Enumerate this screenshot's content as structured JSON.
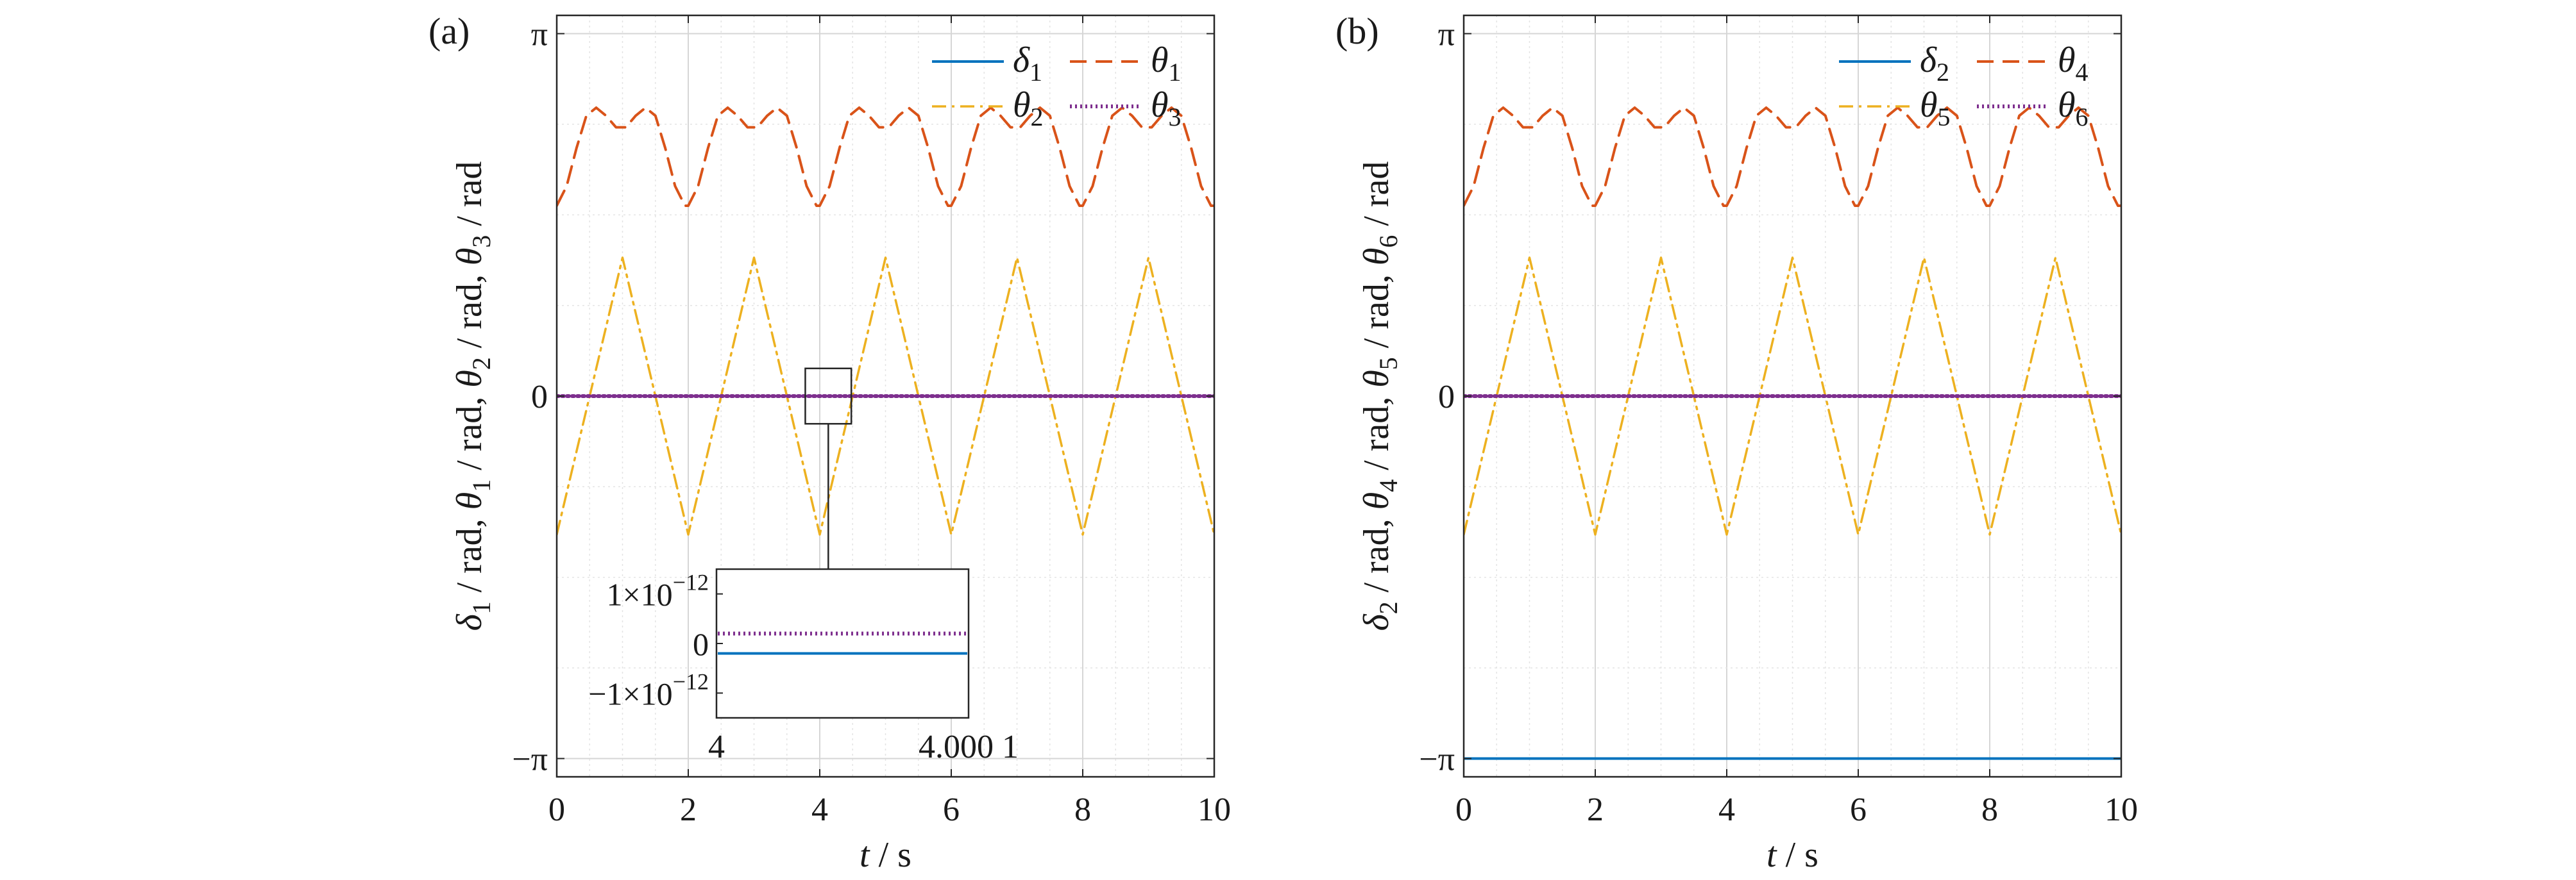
{
  "chart_data": [
    {
      "panel_label": "(a)",
      "type": "line",
      "xlabel": {
        "var": "t",
        "unit": " / s"
      },
      "ylabel_terms": [
        {
          "var": "δ",
          "sub": "1",
          "unit": " / rad,"
        },
        {
          "var": "θ",
          "sub": "1",
          "unit": " / rad,"
        },
        {
          "var": "θ",
          "sub": "2",
          "unit": " / rad,"
        },
        {
          "var": "θ",
          "sub": "3",
          "unit": " / rad"
        }
      ],
      "xlim": [
        0,
        10
      ],
      "ylim": [
        -3.3,
        3.3
      ],
      "xticks": [
        0,
        2,
        4,
        6,
        8,
        10
      ],
      "xtick_labels": [
        "0",
        "2",
        "4",
        "6",
        "8",
        "10"
      ],
      "yticks": [
        -3.1416,
        0,
        3.1416
      ],
      "ytick_labels": [
        "−π",
        "0",
        "π"
      ],
      "grid": true,
      "legend_position": "top-right",
      "series": [
        {
          "name": "δ",
          "sub": "1",
          "style": "solid",
          "color": "#0072BD",
          "x": [
            0,
            10
          ],
          "y": [
            0,
            0
          ]
        },
        {
          "name": "θ",
          "sub": "2",
          "style": "dashdot",
          "color": "#EDB120",
          "x": [
            0,
            0.5,
            1,
            1.5,
            2,
            2.5,
            3,
            3.5,
            4,
            4.5,
            5,
            5.5,
            6,
            6.5,
            7,
            7.5,
            8,
            8.5,
            9,
            9.5,
            10
          ],
          "y": [
            -1.2,
            0,
            1.2,
            0,
            -1.2,
            0,
            1.2,
            0,
            -1.2,
            0,
            1.2,
            0,
            -1.2,
            0,
            1.2,
            0,
            -1.2,
            0,
            1.2,
            0,
            -1.2
          ]
        },
        {
          "name": "θ",
          "sub": "1",
          "style": "dashed",
          "color": "#D95319",
          "x": [
            0,
            0.15,
            0.3,
            0.45,
            0.6,
            0.75,
            0.9,
            1.05,
            1.2,
            1.35,
            1.5,
            1.65,
            1.8,
            1.95,
            2,
            2.15,
            2.3,
            2.45,
            2.6,
            2.75,
            2.9,
            3.05,
            3.2,
            3.35,
            3.5,
            3.65,
            3.8,
            3.95,
            4,
            4.15,
            4.3,
            4.45,
            4.6,
            4.75,
            4.9,
            5.05,
            5.2,
            5.35,
            5.5,
            5.65,
            5.8,
            5.95,
            6,
            6.15,
            6.3,
            6.45,
            6.6,
            6.75,
            6.9,
            7.05,
            7.2,
            7.35,
            7.5,
            7.65,
            7.8,
            7.95,
            8,
            8.15,
            8.3,
            8.45,
            8.6,
            8.75,
            8.9,
            9.05,
            9.2,
            9.35,
            9.5,
            9.65,
            9.8,
            9.95,
            10
          ],
          "y": [
            1.65,
            1.82,
            2.15,
            2.43,
            2.5,
            2.43,
            2.33,
            2.33,
            2.43,
            2.5,
            2.43,
            2.15,
            1.82,
            1.65,
            1.65,
            1.82,
            2.15,
            2.43,
            2.5,
            2.43,
            2.33,
            2.33,
            2.43,
            2.5,
            2.43,
            2.15,
            1.82,
            1.65,
            1.65,
            1.82,
            2.15,
            2.43,
            2.5,
            2.43,
            2.33,
            2.33,
            2.43,
            2.5,
            2.43,
            2.15,
            1.82,
            1.65,
            1.65,
            1.82,
            2.15,
            2.43,
            2.5,
            2.43,
            2.33,
            2.33,
            2.43,
            2.5,
            2.43,
            2.15,
            1.82,
            1.65,
            1.65,
            1.82,
            2.15,
            2.43,
            2.5,
            2.43,
            2.33,
            2.33,
            2.43,
            2.5,
            2.43,
            2.15,
            1.82,
            1.65,
            1.65
          ]
        },
        {
          "name": "θ",
          "sub": "3",
          "style": "dotted",
          "color": "#7E2F8E",
          "x": [
            0,
            10
          ],
          "y": [
            0,
            0
          ]
        }
      ],
      "zoom_box": {
        "x": [
          3.78,
          4.48
        ],
        "y": [
          -0.24,
          0.24
        ]
      },
      "inset": {
        "xlim": [
          4,
          4.0001
        ],
        "ylim": [
          -1.5e-12,
          1.5e-12
        ],
        "xtick_labels": [
          "4",
          "4.000 1"
        ],
        "ytick_labels": [
          {
            "base": "1×10",
            "exp": "−12"
          },
          {
            "base": "0",
            "exp": ""
          },
          {
            "base": "−1×10",
            "exp": "−12"
          }
        ],
        "series": [
          {
            "name": "θ",
            "sub": "3",
            "style": "dotted",
            "color": "#7E2F8E",
            "y": 2e-13
          },
          {
            "name": "δ",
            "sub": "1",
            "style": "solid",
            "color": "#0072BD",
            "y": -2e-13
          }
        ]
      }
    },
    {
      "panel_label": "(b)",
      "type": "line",
      "xlabel": {
        "var": "t",
        "unit": " / s"
      },
      "ylabel_terms": [
        {
          "var": "δ",
          "sub": "2",
          "unit": " / rad,"
        },
        {
          "var": "θ",
          "sub": "4",
          "unit": " / rad,"
        },
        {
          "var": "θ",
          "sub": "5",
          "unit": " / rad,"
        },
        {
          "var": "θ",
          "sub": "6",
          "unit": " / rad"
        }
      ],
      "xlim": [
        0,
        10
      ],
      "ylim": [
        -3.3,
        3.3
      ],
      "xticks": [
        0,
        2,
        4,
        6,
        8,
        10
      ],
      "xtick_labels": [
        "0",
        "2",
        "4",
        "6",
        "8",
        "10"
      ],
      "yticks": [
        -3.1416,
        0,
        3.1416
      ],
      "ytick_labels": [
        "−π",
        "0",
        "π"
      ],
      "grid": true,
      "legend_position": "top-right",
      "series": [
        {
          "name": "δ",
          "sub": "2",
          "style": "solid",
          "color": "#0072BD",
          "x": [
            0,
            10
          ],
          "y": [
            -3.1416,
            -3.1416
          ]
        },
        {
          "name": "θ",
          "sub": "5",
          "style": "dashdot",
          "color": "#EDB120",
          "x": [
            0,
            0.5,
            1,
            1.5,
            2,
            2.5,
            3,
            3.5,
            4,
            4.5,
            5,
            5.5,
            6,
            6.5,
            7,
            7.5,
            8,
            8.5,
            9,
            9.5,
            10
          ],
          "y": [
            -1.2,
            0,
            1.2,
            0,
            -1.2,
            0,
            1.2,
            0,
            -1.2,
            0,
            1.2,
            0,
            -1.2,
            0,
            1.2,
            0,
            -1.2,
            0,
            1.2,
            0,
            -1.2
          ]
        },
        {
          "name": "θ",
          "sub": "4",
          "style": "dashed",
          "color": "#D95319",
          "x": [
            0,
            0.15,
            0.3,
            0.45,
            0.6,
            0.75,
            0.9,
            1.05,
            1.2,
            1.35,
            1.5,
            1.65,
            1.8,
            1.95,
            2,
            2.15,
            2.3,
            2.45,
            2.6,
            2.75,
            2.9,
            3.05,
            3.2,
            3.35,
            3.5,
            3.65,
            3.8,
            3.95,
            4,
            4.15,
            4.3,
            4.45,
            4.6,
            4.75,
            4.9,
            5.05,
            5.2,
            5.35,
            5.5,
            5.65,
            5.8,
            5.95,
            6,
            6.15,
            6.3,
            6.45,
            6.6,
            6.75,
            6.9,
            7.05,
            7.2,
            7.35,
            7.5,
            7.65,
            7.8,
            7.95,
            8,
            8.15,
            8.3,
            8.45,
            8.6,
            8.75,
            8.9,
            9.05,
            9.2,
            9.35,
            9.5,
            9.65,
            9.8,
            9.95,
            10
          ],
          "y": [
            1.65,
            1.82,
            2.15,
            2.43,
            2.5,
            2.43,
            2.33,
            2.33,
            2.43,
            2.5,
            2.43,
            2.15,
            1.82,
            1.65,
            1.65,
            1.82,
            2.15,
            2.43,
            2.5,
            2.43,
            2.33,
            2.33,
            2.43,
            2.5,
            2.43,
            2.15,
            1.82,
            1.65,
            1.65,
            1.82,
            2.15,
            2.43,
            2.5,
            2.43,
            2.33,
            2.33,
            2.43,
            2.5,
            2.43,
            2.15,
            1.82,
            1.65,
            1.65,
            1.82,
            2.15,
            2.43,
            2.5,
            2.43,
            2.33,
            2.33,
            2.43,
            2.5,
            2.43,
            2.15,
            1.82,
            1.65,
            1.65,
            1.82,
            2.15,
            2.43,
            2.5,
            2.43,
            2.33,
            2.33,
            2.43,
            2.5,
            2.43,
            2.15,
            1.82,
            1.65,
            1.65
          ]
        },
        {
          "name": "θ",
          "sub": "6",
          "style": "dotted",
          "color": "#7E2F8E",
          "x": [
            0,
            10
          ],
          "y": [
            0,
            0
          ]
        }
      ]
    }
  ]
}
